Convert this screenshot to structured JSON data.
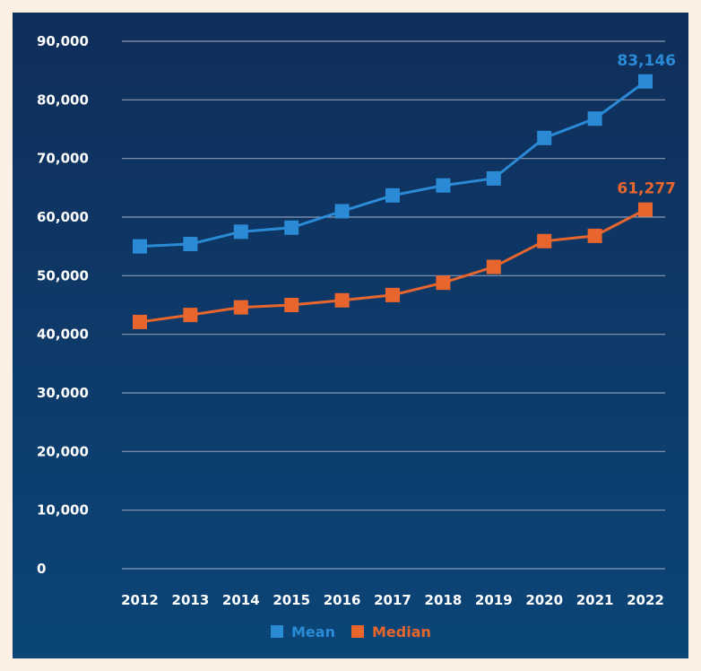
{
  "chart_data": {
    "type": "line",
    "categories": [
      "2012",
      "2013",
      "2014",
      "2015",
      "2016",
      "2017",
      "2018",
      "2019",
      "2020",
      "2021",
      "2022"
    ],
    "series": [
      {
        "name": "Mean",
        "color": "#2b8ad6",
        "values": [
          55000,
          55400,
          57500,
          58200,
          61000,
          63700,
          65400,
          66600,
          73500,
          76800,
          83146
        ]
      },
      {
        "name": "Median",
        "color": "#e8662d",
        "values": [
          42100,
          43300,
          44600,
          45000,
          45800,
          46700,
          48800,
          51500,
          55900,
          56800,
          61277
        ]
      }
    ],
    "end_labels": [
      "83,146",
      "61,277"
    ],
    "ylim": [
      0,
      90000
    ],
    "yticks": [
      "0",
      "10,000",
      "20,000",
      "30,000",
      "40,000",
      "50,000",
      "60,000",
      "70,000",
      "80,000",
      "90,000"
    ],
    "ytick_values": [
      0,
      10000,
      20000,
      30000,
      40000,
      50000,
      60000,
      70000,
      80000,
      90000
    ],
    "grid": true,
    "legend_position": "bottom-center",
    "background_colors": [
      "#102e5a",
      "#0b4577"
    ],
    "page_color": "#fcefe3"
  }
}
